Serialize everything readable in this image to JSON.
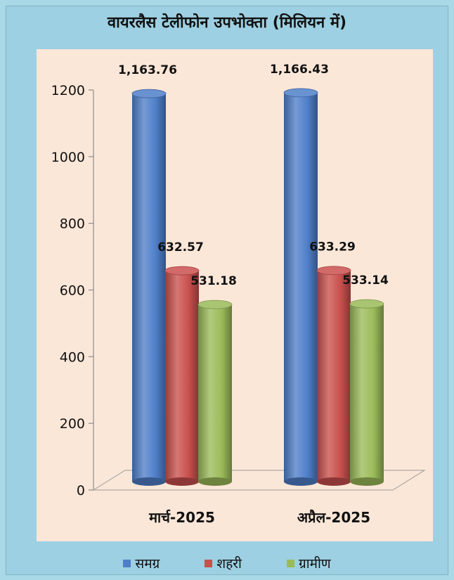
{
  "chart_data": {
    "type": "bar",
    "title": "वायरलैस टेलीफोन उपभोक्ता (मिलियन में)",
    "categories": [
      "मार्च-2025",
      "अप्रैल-2025"
    ],
    "series": [
      {
        "name": "समग्र",
        "values": [
          1163.76,
          1166.43
        ],
        "labels": [
          "1,163.76",
          "1,166.43"
        ],
        "color": "#4f7fc9"
      },
      {
        "name": "शहरी",
        "values": [
          632.57,
          633.29
        ],
        "labels": [
          "632.57",
          "633.29"
        ],
        "color": "#c9504d"
      },
      {
        "name": "ग्रामीण",
        "values": [
          531.18,
          533.14
        ],
        "labels": [
          "531.18",
          "533.14"
        ],
        "color": "#9bbb59"
      }
    ],
    "yticks": [
      "0",
      "200",
      "400",
      "600",
      "800",
      "1000",
      "1200"
    ],
    "ylim": [
      0,
      1200
    ],
    "grid": false,
    "legend_position": "bottom",
    "style": "3d-cylinder"
  }
}
